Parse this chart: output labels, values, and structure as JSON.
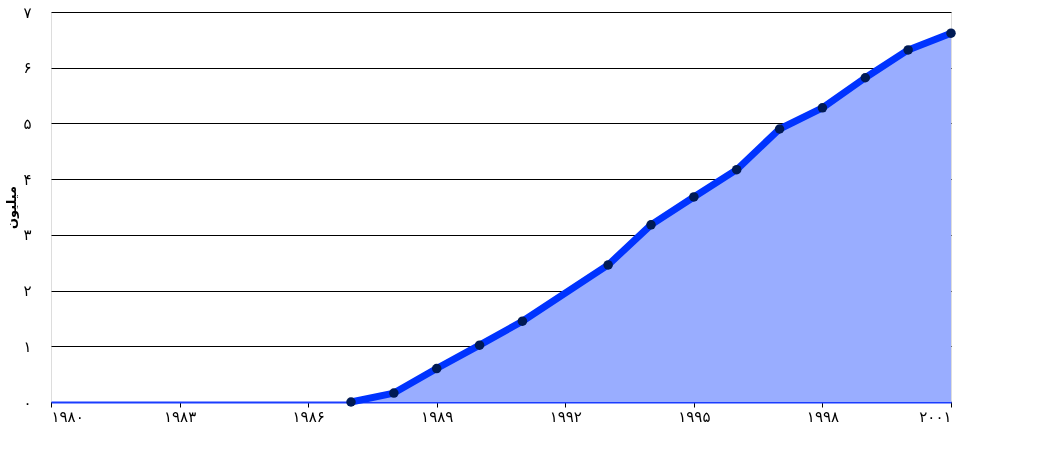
{
  "chart_data": {
    "type": "area",
    "ylabel": "میلیون",
    "x": [
      1987,
      1988,
      1989,
      1990,
      1991,
      1993,
      1994,
      1995,
      1996,
      1997,
      1998,
      1999,
      2000,
      2001
    ],
    "series": [
      {
        "color": "#0033ff",
        "values": [
          0,
          0.16,
          0.6,
          1.02,
          1.45,
          2.46,
          3.18,
          3.68,
          4.17,
          4.9,
          5.28,
          5.82,
          6.32,
          6.62
        ]
      }
    ],
    "xlim": [
      1980,
      2001
    ],
    "xticks": [
      {
        "value": 1980,
        "label": "۱۹۸۰"
      },
      {
        "value": 1983,
        "label": "۱۹۸۳"
      },
      {
        "value": 1986,
        "label": "۱۹۸۶"
      },
      {
        "value": 1989,
        "label": "۱۹۸۹"
      },
      {
        "value": 1992,
        "label": "۱۹۹۲"
      },
      {
        "value": 1995,
        "label": "۱۹۹۵"
      },
      {
        "value": 1998,
        "label": "۱۹۹۸"
      },
      {
        "value": 2001,
        "label": "۲۰۰۱"
      }
    ],
    "ylim": [
      0,
      7
    ],
    "yticks": [
      {
        "value": 0,
        "label": "۰"
      },
      {
        "value": 1,
        "label": "۱"
      },
      {
        "value": 2,
        "label": "۲"
      },
      {
        "value": 3,
        "label": "۳"
      },
      {
        "value": 4,
        "label": "۴"
      },
      {
        "value": 5,
        "label": "۵"
      },
      {
        "value": 6,
        "label": "۶"
      },
      {
        "value": 7,
        "label": "۷"
      }
    ],
    "grid": "y",
    "marker": "circle",
    "line_style": "solid"
  }
}
